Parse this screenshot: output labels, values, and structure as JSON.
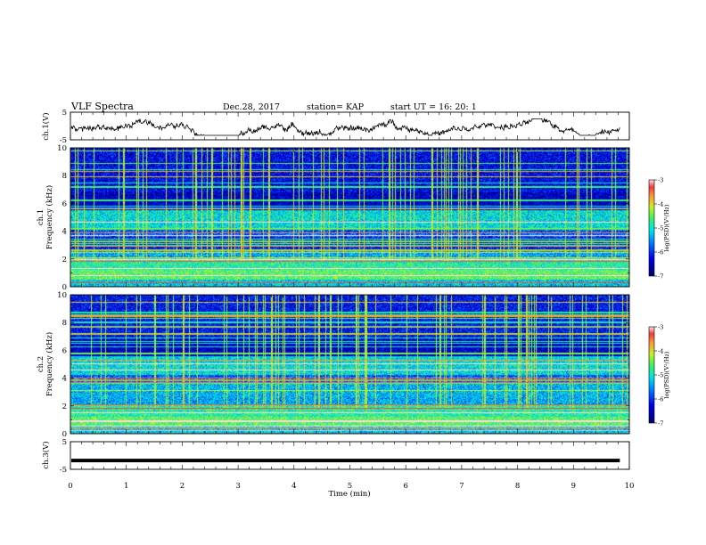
{
  "header": {
    "title": "VLF Spectra",
    "date": "Dec.28, 2017",
    "station": "station= KAP",
    "start": "start UT =   16: 20: 1"
  },
  "chart_data": [
    {
      "type": "line",
      "panel": "ch1-waveform",
      "ylabel": "ch.1(V)",
      "yticks": [
        "5",
        "-5"
      ],
      "ylim": [
        -5,
        5
      ],
      "xlim": [
        0,
        10
      ],
      "x_data_end": 9.83,
      "description_values": "continuous noisy waveform fluctuating roughly between -3 and +2 V"
    },
    {
      "type": "heatmap",
      "panel": "ch1-spectrogram",
      "ylabel": "ch.1\nFrequency (kHz)",
      "ylabel_line1": "ch.1",
      "ylabel_line2": "Frequency (kHz)",
      "yticks": [
        "0",
        "2",
        "4",
        "6",
        "8",
        "10"
      ],
      "ylim": [
        0,
        10
      ],
      "xlim": [
        0,
        10
      ],
      "colorbar": {
        "label": "log(PSD)(V²/Hz)",
        "ticks": [
          "-3",
          "-4",
          "-5",
          "-6",
          "-7"
        ],
        "range": [
          -7,
          -3
        ]
      }
    },
    {
      "type": "heatmap",
      "panel": "ch2-spectrogram",
      "ylabel": "ch.2\nFrequency (kHz)",
      "ylabel_line1": "ch.2",
      "ylabel_line2": "Frequency (kHz)",
      "yticks": [
        "0",
        "2",
        "4",
        "6",
        "8",
        "10"
      ],
      "ylim": [
        0,
        10
      ],
      "xlim": [
        0,
        10
      ],
      "colorbar": {
        "label": "log(PSD)(V²/Hz)",
        "ticks": [
          "-3",
          "-4",
          "-5",
          "-6",
          "-7"
        ],
        "range": [
          -7,
          -3
        ]
      }
    },
    {
      "type": "line",
      "panel": "ch3-waveform",
      "ylabel": "ch.3(V)",
      "yticks": [
        "5",
        "-5"
      ],
      "ylim": [
        -5,
        5
      ],
      "xlim": [
        0,
        10
      ],
      "value": -1.8,
      "x_data_end": 9.83
    }
  ],
  "xaxis": {
    "label": "Time (min)",
    "ticks": [
      "0",
      "1",
      "2",
      "3",
      "4",
      "5",
      "6",
      "7",
      "8",
      "9",
      "10"
    ]
  },
  "colors": {
    "background": "#ffffff",
    "axis": "#000000",
    "trace": "#000000"
  }
}
